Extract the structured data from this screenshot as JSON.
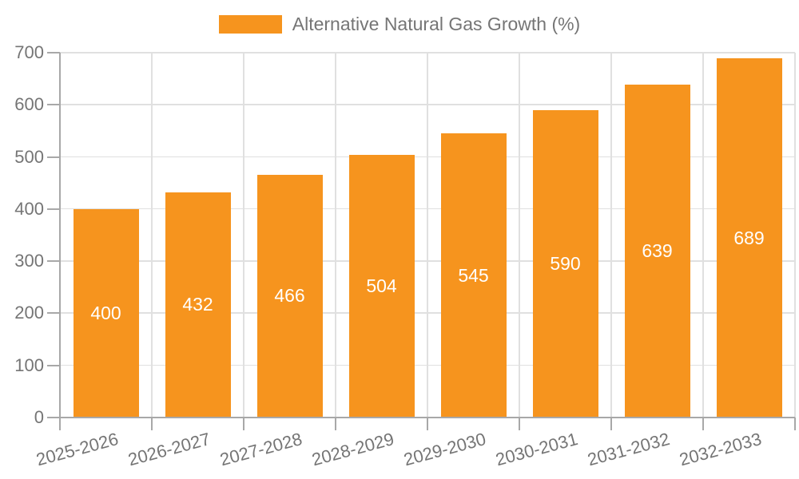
{
  "chart_data": {
    "type": "bar",
    "title": "Alternative Natural Gas Growth (%)",
    "legend": {
      "label": "Alternative Natural Gas Growth (%)",
      "position": "top-center"
    },
    "categories": [
      "2025-2026",
      "2026-2027",
      "2027-2028",
      "2028-2029",
      "2029-2030",
      "2030-2031",
      "2031-2032",
      "2032-2033"
    ],
    "values": [
      400,
      432,
      466,
      504,
      545,
      590,
      639,
      689
    ],
    "xlabel": "",
    "ylabel": "",
    "ylim": [
      0,
      700
    ],
    "ytick_interval": 100,
    "grid": true,
    "value_labels": "inside-center",
    "xlabel_rotation_deg": -15,
    "colors": {
      "bar": "#f6941e",
      "value_label": "#ffffff",
      "axis": "#a8a8a8",
      "gridline": "#e0e0e0",
      "tick_text": "#757575",
      "background": "#ffffff"
    }
  }
}
